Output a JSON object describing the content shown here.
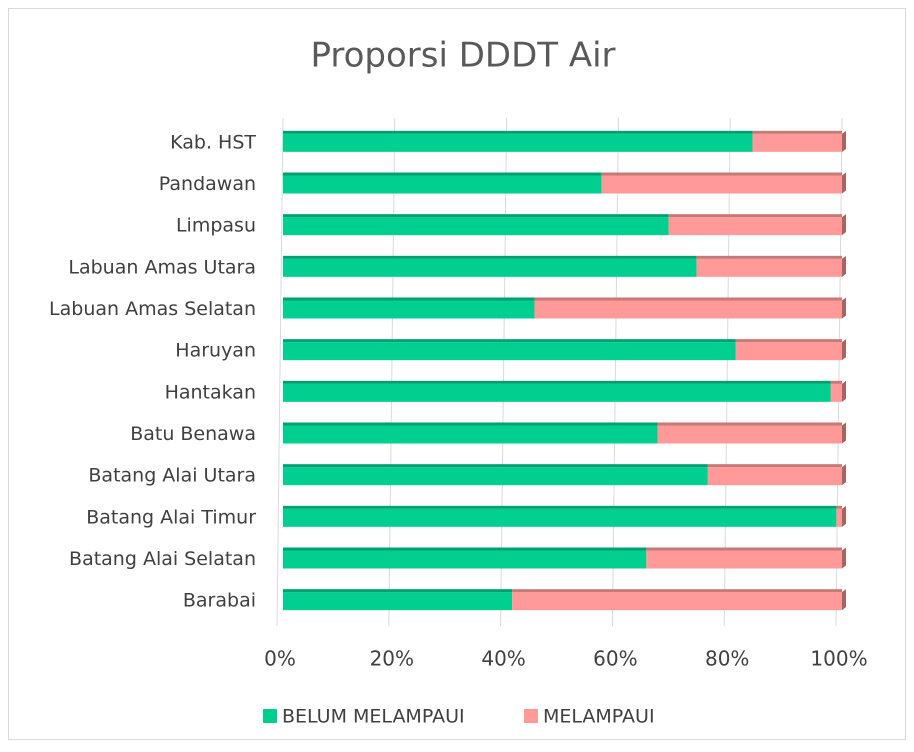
{
  "chart_data": {
    "type": "bar",
    "orientation": "horizontal",
    "stacked": true,
    "title": "Proporsi DDDT Air",
    "categories": [
      "Kab. HST",
      "Pandawan",
      "Limpasu",
      "Labuan Amas Utara",
      "Labuan Amas Selatan",
      "Haruyan",
      "Hantakan",
      "Batu Benawa",
      "Batang Alai Utara",
      "Batang Alai Timur",
      "Batang Alai Selatan",
      "Barabai"
    ],
    "series": [
      {
        "name": "BELUM MELAMPAUI",
        "color": "#00cf8f",
        "values": [
          84,
          57,
          69,
          74,
          45,
          81,
          98,
          67,
          76,
          99,
          65,
          41
        ]
      },
      {
        "name": "MELAMPAUI",
        "color": "#ff9a98",
        "values": [
          16,
          43,
          31,
          26,
          55,
          19,
          2,
          33,
          24,
          1,
          35,
          59
        ]
      }
    ],
    "xlim": [
      0,
      100
    ],
    "xticks": [
      {
        "value": 0,
        "label": "0%"
      },
      {
        "value": 20,
        "label": "20%"
      },
      {
        "value": 40,
        "label": "40%"
      },
      {
        "value": 60,
        "label": "60%"
      },
      {
        "value": 80,
        "label": "80%"
      },
      {
        "value": 100,
        "label": "100%"
      }
    ],
    "grid": true,
    "legend": "bottom"
  }
}
